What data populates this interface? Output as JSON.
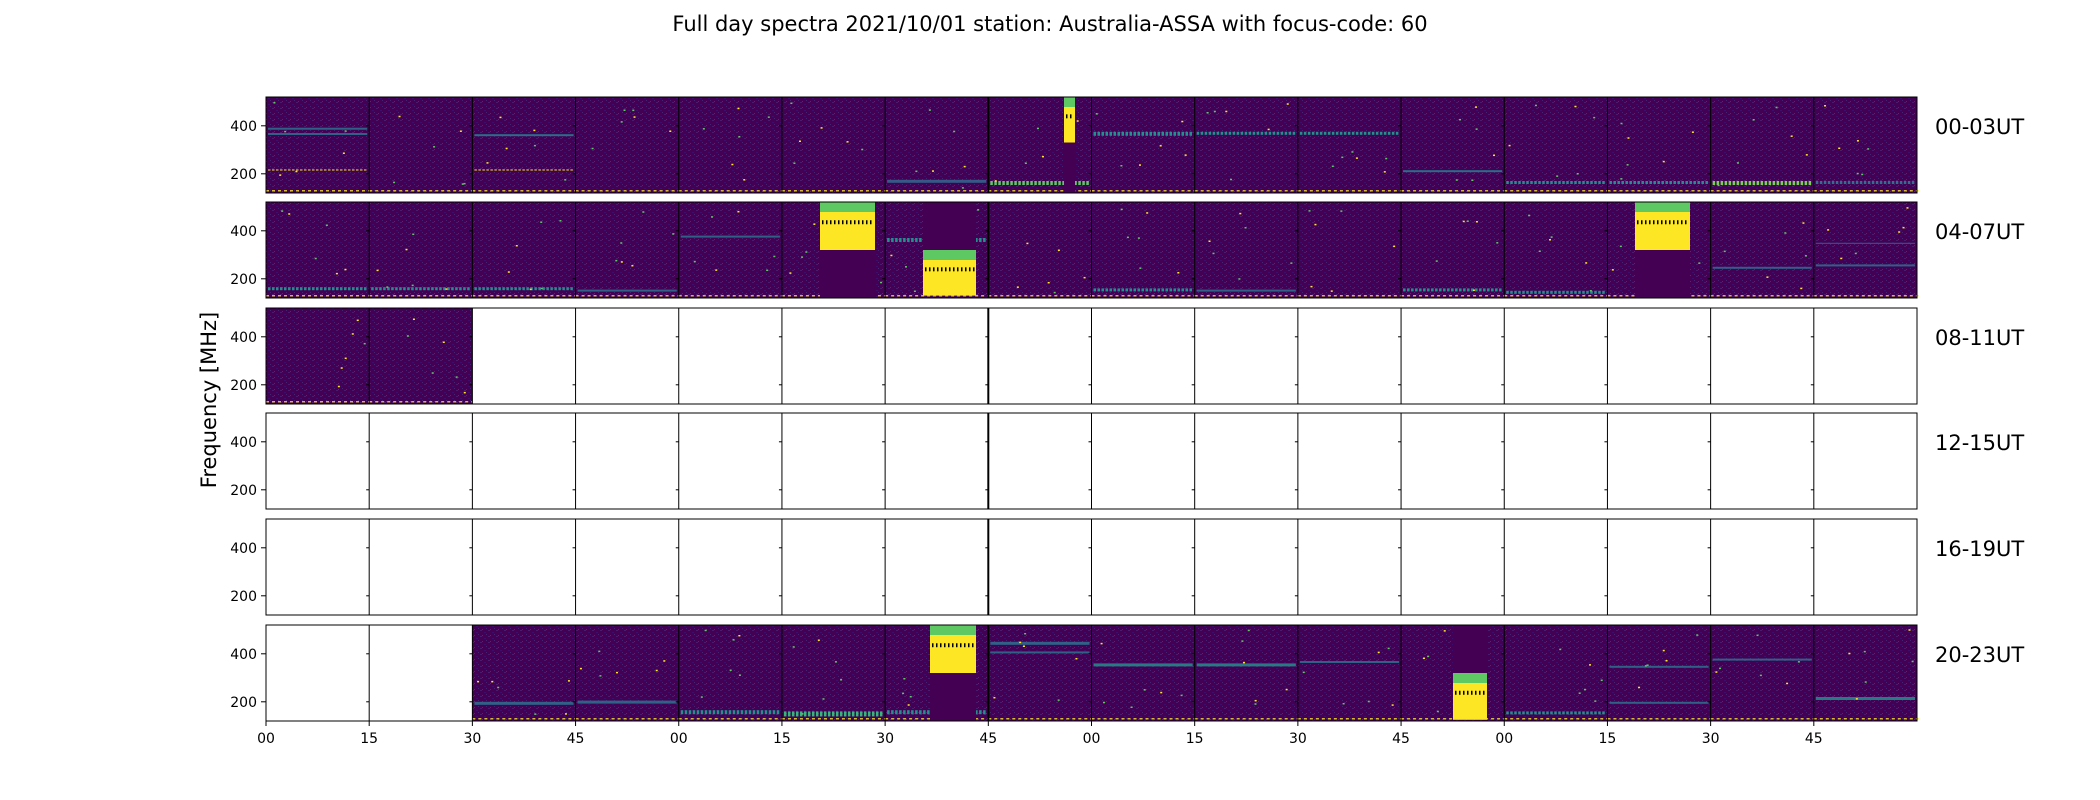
{
  "chart_data": {
    "type": "heatmap",
    "title": "Full day spectra 2021/10/01 station: Australia-ASSA with focus-code: 60",
    "ylabel": "Frequency [MHz]",
    "xlabel": "",
    "ylim": [
      120,
      520
    ],
    "y_ticks": [
      200,
      400
    ],
    "x_tick_labels": [
      "00",
      "15",
      "30",
      "45",
      "00",
      "15",
      "30",
      "45",
      "00",
      "15",
      "30",
      "45",
      "00",
      "15",
      "30",
      "45"
    ],
    "colormap": "viridis",
    "colors": {
      "background": "#440154",
      "mid": "#21918c",
      "bright": "#fde725"
    },
    "grid": false,
    "rows": [
      {
        "label": "00-03UT",
        "has_data": [
          true,
          true,
          true,
          true,
          true,
          true,
          true,
          true,
          true,
          true,
          true,
          true,
          true,
          true,
          true,
          true
        ]
      },
      {
        "label": "04-07UT",
        "has_data": [
          true,
          true,
          true,
          true,
          true,
          true,
          true,
          true,
          true,
          true,
          true,
          true,
          true,
          true,
          true,
          true
        ]
      },
      {
        "label": "08-11UT",
        "has_data": [
          true,
          true,
          false,
          false,
          false,
          false,
          false,
          false,
          false,
          false,
          false,
          false,
          false,
          false,
          false,
          false
        ]
      },
      {
        "label": "12-15UT",
        "has_data": [
          false,
          false,
          false,
          false,
          false,
          false,
          false,
          false,
          false,
          false,
          false,
          false,
          false,
          false,
          false,
          false
        ]
      },
      {
        "label": "16-19UT",
        "has_data": [
          false,
          false,
          false,
          false,
          false,
          false,
          false,
          false,
          false,
          false,
          false,
          false,
          false,
          false,
          false,
          false
        ]
      },
      {
        "label": "20-23UT",
        "has_data": [
          false,
          false,
          true,
          true,
          true,
          true,
          true,
          true,
          true,
          true,
          true,
          true,
          true,
          true,
          true,
          true
        ]
      }
    ]
  }
}
